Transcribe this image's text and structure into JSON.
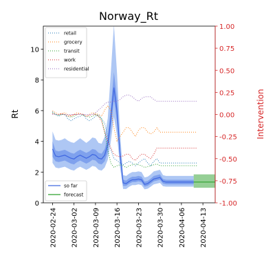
{
  "chart_data": {
    "type": "line",
    "title": "Norway_Rt",
    "ylabel": "Rt",
    "y2label": "Intervention",
    "ylim": [
      0,
      11.5
    ],
    "y2lim": [
      -1.0,
      1.0
    ],
    "yticks": [
      0,
      2,
      4,
      6,
      8,
      10
    ],
    "y2ticks": [
      "-1.00",
      "-0.75",
      "-0.50",
      "-0.25",
      "0.00",
      "0.25",
      "0.50",
      "0.75",
      "1.00"
    ],
    "y2tick_values": [
      -1.0,
      -0.75,
      -0.5,
      -0.25,
      0.0,
      0.25,
      0.5,
      0.75,
      1.0
    ],
    "xlim": [
      "2020-02-21",
      "2020-04-17"
    ],
    "xticks": [
      "2020-02-24",
      "2020-03-02",
      "2020-03-09",
      "2020-03-16",
      "2020-03-23",
      "2020-03-30",
      "2020-04-06",
      "2020-04-13"
    ],
    "legend_upper": {
      "placement": "upper-left",
      "entries": [
        "retail",
        "grocery",
        "transit",
        "work",
        "residential"
      ]
    },
    "legend_lower": {
      "placement": "lower-left",
      "entries": [
        "so far",
        "forecast"
      ]
    },
    "colors": {
      "rt": "#4169e1",
      "band_outer": "#aec7f4",
      "band_inner": "#6f94eb",
      "forecast": "#2ca02c",
      "right_axis": "#d62728",
      "retail": "#1f77b4",
      "grocery": "#ff7f0e",
      "transit": "#2ca02c",
      "work": "#d62728",
      "residential": "#9467bd"
    },
    "rt_so_far": {
      "x": [
        "2020-02-24",
        "2020-02-25",
        "2020-02-26",
        "2020-02-27",
        "2020-02-28",
        "2020-02-29",
        "2020-03-01",
        "2020-03-02",
        "2020-03-03",
        "2020-03-04",
        "2020-03-05",
        "2020-03-06",
        "2020-03-07",
        "2020-03-08",
        "2020-03-09",
        "2020-03-10",
        "2020-03-11",
        "2020-03-12",
        "2020-03-13",
        "2020-03-14",
        "2020-03-15",
        "2020-03-16",
        "2020-03-17",
        "2020-03-18",
        "2020-03-19",
        "2020-03-20",
        "2020-03-21",
        "2020-03-22",
        "2020-03-23",
        "2020-03-24",
        "2020-03-25",
        "2020-03-26",
        "2020-03-27",
        "2020-03-28",
        "2020-03-29",
        "2020-03-30",
        "2020-03-31",
        "2020-04-01",
        "2020-04-02",
        "2020-04-03",
        "2020-04-04",
        "2020-04-05",
        "2020-04-06",
        "2020-04-07",
        "2020-04-08",
        "2020-04-09",
        "2020-04-10"
      ],
      "median": [
        3.5,
        3.05,
        3.0,
        3.05,
        3.1,
        3.0,
        2.9,
        2.85,
        3.0,
        3.1,
        3.0,
        2.9,
        3.0,
        3.15,
        3.1,
        2.9,
        2.85,
        3.1,
        3.8,
        5.5,
        7.5,
        6.0,
        3.2,
        1.3,
        1.25,
        1.4,
        1.5,
        1.5,
        1.55,
        1.5,
        1.2,
        1.25,
        1.4,
        1.55,
        1.6,
        1.65,
        1.4,
        1.35,
        1.35,
        1.35,
        1.35,
        1.35,
        1.35,
        1.35,
        1.35,
        1.35,
        1.35
      ],
      "inner_low": [
        3.0,
        2.7,
        2.65,
        2.7,
        2.75,
        2.65,
        2.55,
        2.5,
        2.65,
        2.75,
        2.65,
        2.55,
        2.65,
        2.8,
        2.75,
        2.55,
        2.5,
        2.7,
        3.3,
        4.8,
        6.7,
        5.3,
        2.8,
        1.1,
        1.1,
        1.25,
        1.35,
        1.35,
        1.4,
        1.35,
        1.05,
        1.1,
        1.25,
        1.4,
        1.45,
        1.5,
        1.25,
        1.2,
        1.2,
        1.2,
        1.2,
        1.2,
        1.2,
        1.2,
        1.2,
        1.2,
        1.2
      ],
      "inner_high": [
        4.0,
        3.4,
        3.35,
        3.4,
        3.45,
        3.35,
        3.25,
        3.2,
        3.35,
        3.45,
        3.35,
        3.25,
        3.35,
        3.5,
        3.45,
        3.25,
        3.2,
        3.5,
        4.3,
        6.2,
        8.5,
        6.8,
        3.6,
        1.5,
        1.45,
        1.6,
        1.7,
        1.7,
        1.75,
        1.7,
        1.38,
        1.42,
        1.58,
        1.75,
        1.8,
        1.85,
        1.55,
        1.5,
        1.5,
        1.5,
        1.5,
        1.5,
        1.5,
        1.5,
        1.5,
        1.5,
        1.5
      ],
      "outer_low": [
        2.6,
        2.3,
        2.25,
        2.3,
        2.35,
        2.25,
        2.15,
        2.1,
        2.25,
        2.35,
        2.25,
        2.15,
        2.25,
        2.4,
        2.35,
        2.15,
        2.1,
        2.3,
        2.8,
        4.0,
        5.6,
        4.4,
        2.3,
        0.9,
        0.9,
        1.05,
        1.15,
        1.15,
        1.2,
        1.15,
        0.88,
        0.92,
        1.05,
        1.2,
        1.25,
        1.3,
        1.08,
        1.05,
        1.05,
        1.05,
        1.05,
        1.05,
        1.05,
        1.05,
        1.05,
        1.05,
        1.05
      ],
      "outer_high": [
        4.65,
        4.1,
        4.05,
        4.1,
        4.2,
        4.05,
        3.95,
        3.9,
        4.05,
        4.2,
        4.05,
        3.9,
        4.05,
        4.25,
        4.2,
        3.9,
        3.85,
        4.3,
        5.5,
        8.5,
        11.6,
        8.5,
        4.6,
        1.8,
        1.75,
        1.9,
        2.0,
        2.0,
        2.05,
        2.0,
        1.65,
        1.7,
        1.85,
        2.05,
        2.1,
        2.15,
        1.8,
        1.75,
        1.75,
        1.75,
        1.75,
        1.75,
        1.75,
        1.75,
        1.75,
        1.75,
        1.75
      ]
    },
    "rt_forecast": {
      "x": [
        "2020-04-10",
        "2020-04-11",
        "2020-04-12",
        "2020-04-13",
        "2020-04-14",
        "2020-04-15",
        "2020-04-16",
        "2020-04-17"
      ],
      "median": [
        1.35,
        1.35,
        1.35,
        1.35,
        1.35,
        1.35,
        1.35,
        1.35
      ],
      "low": [
        0.98,
        0.98,
        0.98,
        0.98,
        0.98,
        0.98,
        0.98,
        0.98
      ],
      "high": [
        1.85,
        1.85,
        1.85,
        1.85,
        1.85,
        1.85,
        1.85,
        1.85
      ]
    },
    "interventions": {
      "x": [
        "2020-02-24",
        "2020-02-25",
        "2020-02-26",
        "2020-02-27",
        "2020-02-28",
        "2020-02-29",
        "2020-03-01",
        "2020-03-02",
        "2020-03-03",
        "2020-03-04",
        "2020-03-05",
        "2020-03-06",
        "2020-03-07",
        "2020-03-08",
        "2020-03-09",
        "2020-03-10",
        "2020-03-11",
        "2020-03-12",
        "2020-03-13",
        "2020-03-14",
        "2020-03-15",
        "2020-03-16",
        "2020-03-17",
        "2020-03-18",
        "2020-03-19",
        "2020-03-20",
        "2020-03-21",
        "2020-03-22",
        "2020-03-23",
        "2020-03-24",
        "2020-03-25",
        "2020-03-26",
        "2020-03-27",
        "2020-03-28",
        "2020-03-29",
        "2020-03-30",
        "2020-03-31",
        "2020-04-01",
        "2020-04-02",
        "2020-04-03",
        "2020-04-04",
        "2020-04-05",
        "2020-04-06",
        "2020-04-07",
        "2020-04-08",
        "2020-04-09",
        "2020-04-10",
        "2020-04-11"
      ],
      "series": [
        {
          "name": "retail",
          "values": [
            0.03,
            0.0,
            -0.02,
            0.0,
            0.0,
            -0.05,
            -0.07,
            -0.05,
            -0.03,
            -0.02,
            0.0,
            -0.05,
            -0.07,
            -0.05,
            -0.02,
            0.0,
            -0.05,
            -0.1,
            -0.25,
            -0.4,
            -0.5,
            -0.52,
            -0.55,
            -0.57,
            -0.55,
            -0.53,
            -0.55,
            -0.58,
            -0.55,
            -0.52,
            -0.5,
            -0.55,
            -0.58,
            -0.53,
            -0.5,
            -0.55,
            -0.55,
            -0.55,
            -0.55,
            -0.55,
            -0.55,
            -0.55,
            -0.55,
            -0.55,
            -0.55,
            -0.55,
            -0.55,
            -0.55
          ]
        },
        {
          "name": "grocery",
          "values": [
            0.04,
            0.02,
            0.0,
            0.01,
            0.02,
            0.0,
            -0.02,
            0.0,
            0.02,
            0.01,
            0.0,
            -0.02,
            0.0,
            0.02,
            0.01,
            0.0,
            -0.02,
            0.05,
            0.1,
            0.05,
            -0.15,
            -0.3,
            -0.25,
            -0.2,
            -0.15,
            -0.15,
            -0.2,
            -0.25,
            -0.18,
            -0.15,
            -0.15,
            -0.2,
            -0.22,
            -0.2,
            -0.15,
            -0.2,
            -0.2,
            -0.2,
            -0.2,
            -0.2,
            -0.2,
            -0.2,
            -0.2,
            -0.2,
            -0.2,
            -0.2,
            -0.2,
            -0.2
          ]
        },
        {
          "name": "transit",
          "values": [
            0.02,
            0.0,
            -0.01,
            0.0,
            0.0,
            -0.02,
            -0.03,
            -0.02,
            0.0,
            0.0,
            -0.01,
            -0.02,
            -0.03,
            -0.02,
            0.0,
            -0.02,
            -0.05,
            -0.2,
            -0.4,
            -0.55,
            -0.6,
            -0.58,
            -0.57,
            -0.58,
            -0.6,
            -0.58,
            -0.57,
            -0.56,
            -0.57,
            -0.58,
            -0.6,
            -0.59,
            -0.58,
            -0.57,
            -0.56,
            -0.58,
            -0.58,
            -0.58,
            -0.58,
            -0.58,
            -0.58,
            -0.58,
            -0.58,
            -0.58,
            -0.58,
            -0.58,
            -0.58,
            -0.58
          ]
        },
        {
          "name": "work",
          "values": [
            0.01,
            0.0,
            0.0,
            0.01,
            0.0,
            -0.02,
            -0.01,
            0.0,
            0.0,
            0.01,
            0.0,
            -0.02,
            -0.01,
            0.0,
            0.0,
            -0.02,
            -0.08,
            -0.2,
            -0.3,
            -0.38,
            -0.45,
            -0.47,
            -0.48,
            -0.47,
            -0.45,
            -0.45,
            -0.5,
            -0.52,
            -0.48,
            -0.45,
            -0.45,
            -0.48,
            -0.5,
            -0.45,
            -0.38,
            -0.38,
            -0.38,
            -0.38,
            -0.38,
            -0.38,
            -0.38,
            -0.38,
            -0.38,
            -0.38,
            -0.38,
            -0.38,
            -0.38,
            -0.38
          ]
        },
        {
          "name": "residential",
          "values": [
            0.0,
            0.0,
            0.0,
            0.0,
            0.0,
            0.0,
            0.0,
            0.0,
            0.0,
            0.0,
            0.0,
            0.0,
            0.0,
            0.0,
            0.02,
            0.05,
            0.08,
            0.12,
            0.14,
            0.14,
            0.15,
            0.15,
            0.17,
            0.2,
            0.22,
            0.22,
            0.2,
            0.17,
            0.15,
            0.18,
            0.2,
            0.2,
            0.2,
            0.17,
            0.15,
            0.15,
            0.15,
            0.15,
            0.15,
            0.15,
            0.15,
            0.15,
            0.15,
            0.15,
            0.15,
            0.15,
            0.15,
            0.15
          ]
        }
      ]
    }
  }
}
